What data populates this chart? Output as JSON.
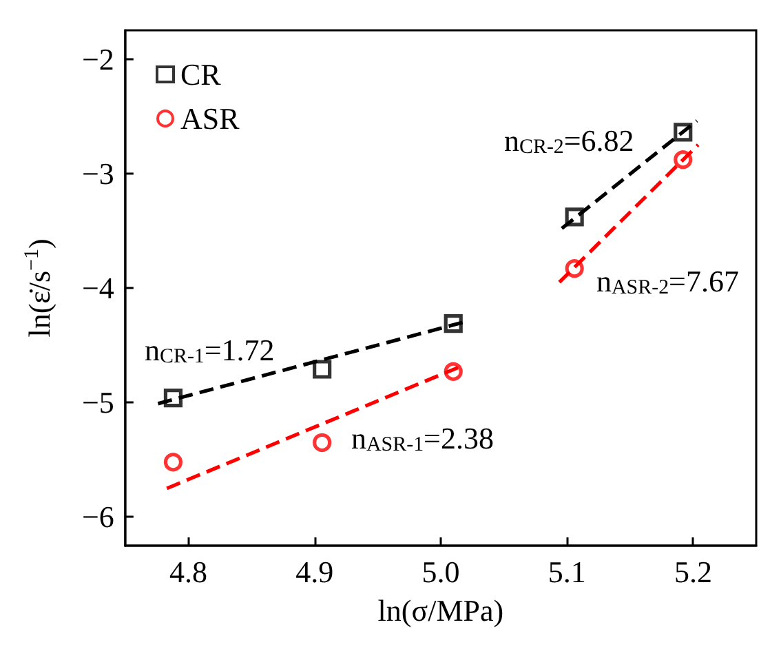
{
  "chart_data": {
    "type": "scatter",
    "xlabel": "ln(σ/MPa)",
    "ylabel": "ln(ε̇/s$^{−1}$)",
    "xlim": [
      4.75,
      5.25
    ],
    "ylim": [
      -6.25,
      -1.75
    ],
    "xticks": [
      4.8,
      4.9,
      {
        "value": 5.0,
        "label": "5.0"
      },
      5.1,
      5.2
    ],
    "yticks": [
      {
        "value": -6,
        "label": "−6"
      },
      {
        "value": -5,
        "label": "−5"
      },
      {
        "value": -4,
        "label": "−4"
      },
      {
        "value": -3,
        "label": "−3"
      },
      {
        "value": -2,
        "label": "−2"
      }
    ],
    "grid": false,
    "legend": "top left",
    "series": [
      {
        "name": "CR",
        "marker": "square",
        "color": "#000000",
        "x": [
          4.788,
          4.906,
          5.01,
          5.106,
          5.192
        ],
        "values": [
          -4.96,
          -4.71,
          -4.31,
          -3.38,
          -2.64
        ]
      },
      {
        "name": "ASR",
        "marker": "circle",
        "color": "#ff0000",
        "x": [
          4.788,
          4.906,
          5.01,
          5.106,
          5.192
        ],
        "values": [
          -5.52,
          -5.35,
          -4.73,
          -3.83,
          -2.88
        ]
      },
      {
        "type": "line",
        "marker": "none",
        "line_style": "dashed",
        "color": "#000000",
        "x": [
          4.776,
          5.021
        ],
        "values": [
          -5.01,
          -4.29
        ]
      },
      {
        "type": "line",
        "marker": "none",
        "line_style": "dashed",
        "color": "#000000",
        "x": [
          5.096,
          5.203
        ],
        "values": [
          -3.48,
          -2.54
        ]
      },
      {
        "type": "line",
        "marker": "none",
        "line_style": "dashed",
        "color": "#ff0000",
        "x": [
          4.783,
          5.017
        ],
        "values": [
          -5.75,
          -4.68
        ]
      },
      {
        "type": "line",
        "marker": "none",
        "line_style": "dashed",
        "color": "#ff0000",
        "x": [
          5.094,
          5.204
        ],
        "values": [
          -3.95,
          -2.75
        ]
      }
    ],
    "annotations": [
      "n$_{CR-1}$=1.72",
      "n$_{ASR-1}$=2.38",
      "n$_{CR-2}$=6.82",
      "n$_{ASR-2}$=7.67"
    ]
  }
}
